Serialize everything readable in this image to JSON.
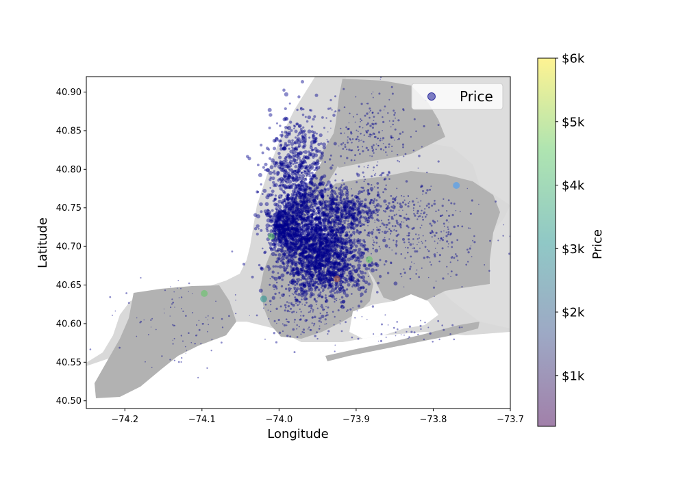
{
  "chart_data": {
    "type": "scatter",
    "title": "",
    "xlabel": "Longitude",
    "ylabel": "Latitude",
    "xlim": [
      -74.25,
      -73.7
    ],
    "ylim": [
      40.49,
      40.92
    ],
    "xticks": [
      -74.2,
      -74.1,
      -74.0,
      -73.9,
      -73.8,
      -73.7
    ],
    "xtick_labels": [
      "−74.2",
      "−74.1",
      "−74.0",
      "−73.9",
      "−73.8",
      "−73.7"
    ],
    "yticks": [
      40.5,
      40.55,
      40.6,
      40.65,
      40.7,
      40.75,
      40.8,
      40.85,
      40.9
    ],
    "ytick_labels": [
      "40.50",
      "40.55",
      "40.60",
      "40.65",
      "40.70",
      "40.75",
      "40.80",
      "40.85",
      "40.90"
    ],
    "legend": {
      "position": "top-right",
      "entries": [
        "Price"
      ]
    },
    "grid": false,
    "background": "map of New York City boroughs",
    "colorbar": {
      "label": "Price",
      "colormap": "viridis",
      "range": [
        0,
        6000
      ],
      "ticks": [
        1000,
        2000,
        3000,
        4000,
        5000,
        6000
      ],
      "tick_labels": [
        "$1k",
        "$2k",
        "$3k",
        "$4k",
        "$5k",
        "$6k"
      ]
    },
    "series": [
      {
        "name": "Price",
        "color_dominant": "#00008b",
        "marker": "circle",
        "alpha": 0.5
      }
    ]
  },
  "colors": {
    "water": "#d9d9d9",
    "land_outer": "#ffffff",
    "land_boroughs": "#b2b2b2",
    "land_other": "#dddddd",
    "points": "#00008b"
  }
}
